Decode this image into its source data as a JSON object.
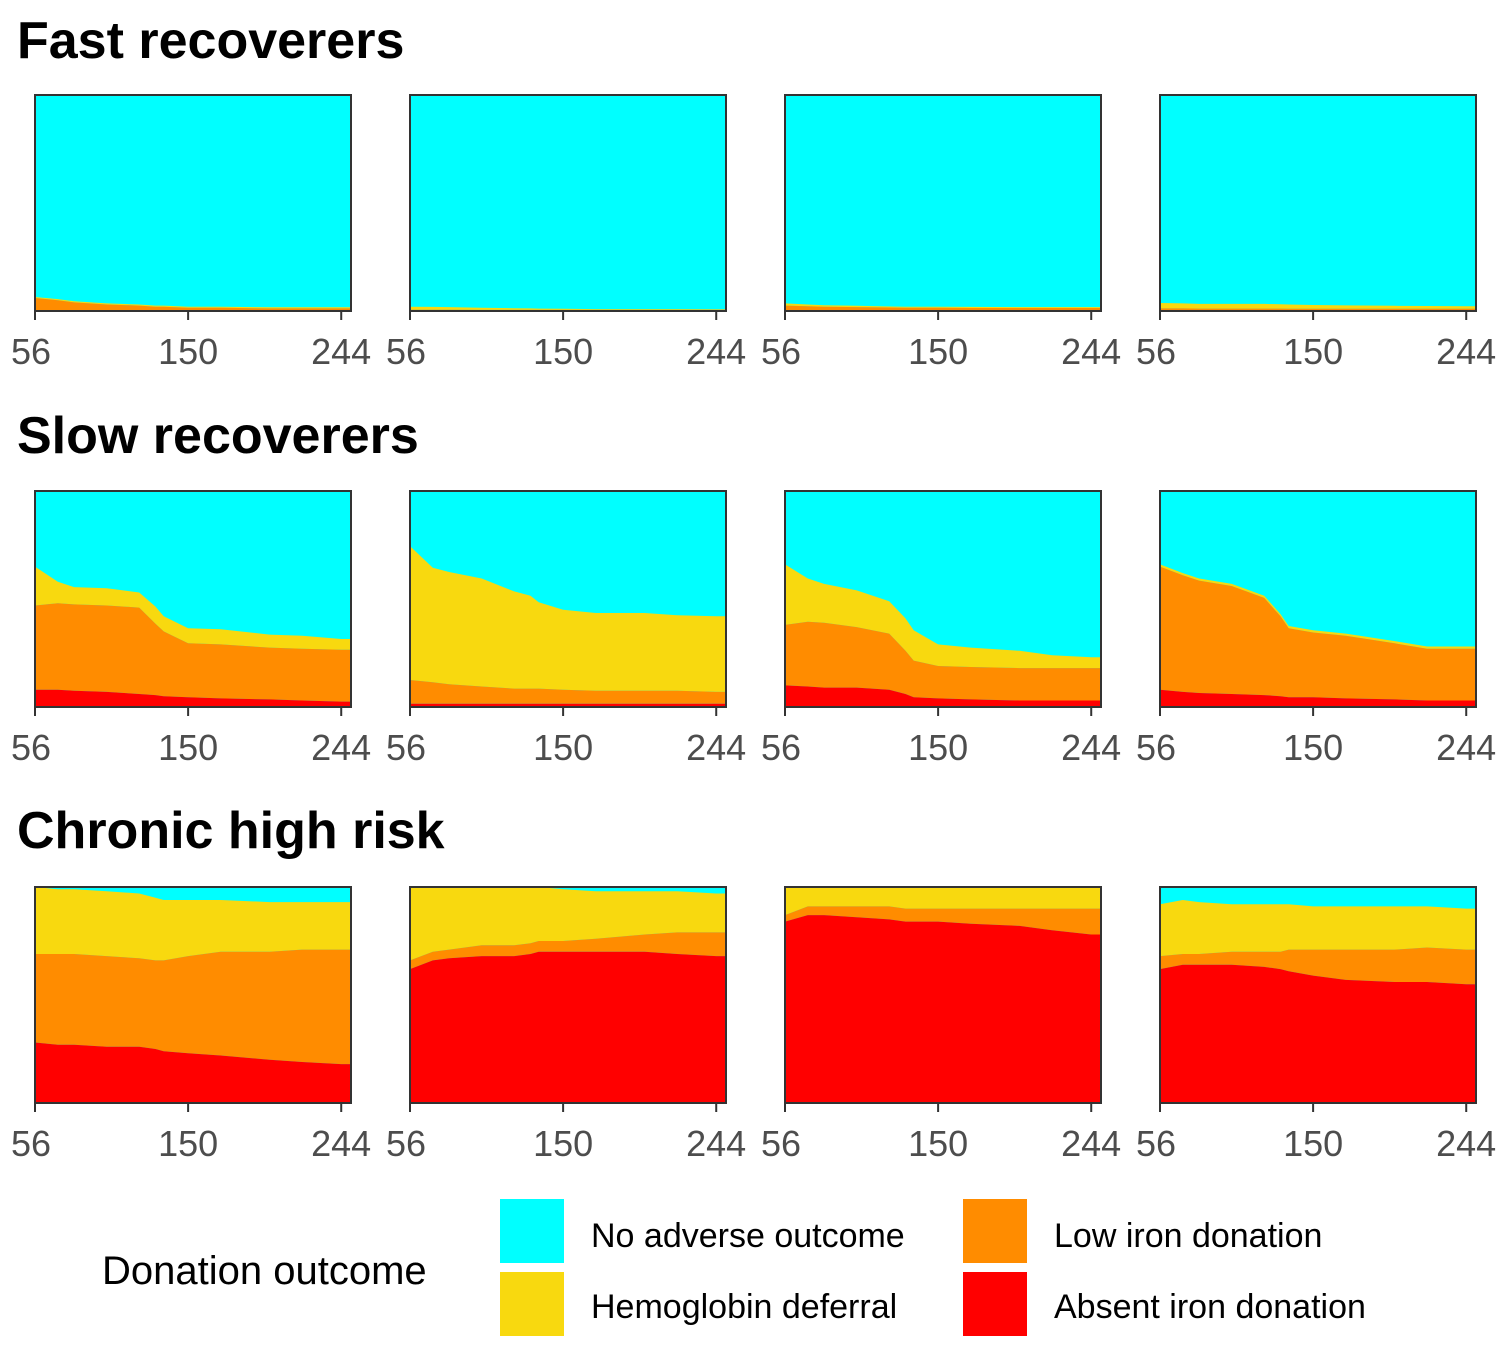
{
  "chart_data": {
    "type": "area",
    "x_ticks": [
      56,
      150,
      244
    ],
    "xlim": [
      56,
      250
    ],
    "ylim": [
      0,
      1
    ],
    "stacking": "percent",
    "grid": false,
    "legend": {
      "title": "Donation outcome",
      "placement": "bottom",
      "entries": [
        {
          "key": "none",
          "label": "No adverse outcome",
          "color": "#00FFFF"
        },
        {
          "key": "hb",
          "label": "Hemoglobin deferral",
          "color": "#F8D90F"
        },
        {
          "key": "low",
          "label": "Low iron donation",
          "color": "#FF8C00"
        },
        {
          "key": "absent",
          "label": "Absent iron donation",
          "color": "#FF0000"
        }
      ]
    },
    "x": [
      56,
      70,
      80,
      100,
      120,
      130,
      135,
      150,
      170,
      200,
      220,
      244,
      250
    ],
    "rows": [
      {
        "title": "Fast recoverers",
        "panels": [
          {
            "absent": [
              0,
              0,
              0,
              0,
              0,
              0,
              0,
              0,
              0,
              0,
              0,
              0,
              0
            ],
            "low": [
              0.06,
              0.05,
              0.04,
              0.03,
              0.025,
              0.02,
              0.02,
              0.015,
              0.015,
              0.012,
              0.012,
              0.012,
              0.012
            ],
            "hb": [
              0.005,
              0.005,
              0.005,
              0.005,
              0.005,
              0.005,
              0.005,
              0.005,
              0.005,
              0.005,
              0.005,
              0.005,
              0.005
            ]
          },
          {
            "absent": [
              0,
              0,
              0,
              0,
              0,
              0,
              0,
              0,
              0,
              0,
              0,
              0,
              0
            ],
            "low": [
              0.006,
              0.006,
              0.006,
              0.005,
              0.005,
              0.005,
              0.005,
              0.005,
              0.005,
              0.005,
              0.005,
              0.005,
              0.005
            ],
            "hb": [
              0.014,
              0.013,
              0.012,
              0.01,
              0.008,
              0.007,
              0.006,
              0.005,
              0.004,
              0.004,
              0.004,
              0.003,
              0.003
            ]
          },
          {
            "absent": [
              0,
              0,
              0,
              0,
              0,
              0,
              0,
              0,
              0,
              0,
              0,
              0,
              0
            ],
            "low": [
              0.025,
              0.022,
              0.02,
              0.018,
              0.016,
              0.015,
              0.015,
              0.015,
              0.014,
              0.014,
              0.014,
              0.014,
              0.014
            ],
            "hb": [
              0.01,
              0.008,
              0.007,
              0.006,
              0.005,
              0.005,
              0.005,
              0.005,
              0.005,
              0.004,
              0.004,
              0.004,
              0.004
            ]
          },
          {
            "absent": [
              0,
              0,
              0,
              0,
              0,
              0,
              0,
              0,
              0,
              0,
              0,
              0,
              0
            ],
            "low": [
              0.012,
              0.012,
              0.011,
              0.011,
              0.011,
              0.011,
              0.01,
              0.01,
              0.01,
              0.01,
              0.01,
              0.01,
              0.01
            ],
            "hb": [
              0.025,
              0.023,
              0.022,
              0.022,
              0.022,
              0.02,
              0.02,
              0.018,
              0.016,
              0.014,
              0.013,
              0.012,
              0.012
            ]
          }
        ]
      },
      {
        "title": "Slow recoverers",
        "panels": [
          {
            "absent": [
              0.08,
              0.08,
              0.075,
              0.07,
              0.06,
              0.055,
              0.05,
              0.045,
              0.04,
              0.035,
              0.03,
              0.025,
              0.025
            ],
            "low": [
              0.39,
              0.4,
              0.4,
              0.4,
              0.4,
              0.33,
              0.3,
              0.25,
              0.25,
              0.24,
              0.24,
              0.24,
              0.24
            ],
            "hb": [
              0.18,
              0.1,
              0.08,
              0.08,
              0.07,
              0.08,
              0.07,
              0.07,
              0.07,
              0.06,
              0.06,
              0.05,
              0.05
            ]
          },
          {
            "absent": [
              0.015,
              0.015,
              0.015,
              0.015,
              0.015,
              0.015,
              0.015,
              0.015,
              0.015,
              0.015,
              0.015,
              0.015,
              0.015
            ],
            "low": [
              0.11,
              0.1,
              0.09,
              0.08,
              0.07,
              0.07,
              0.07,
              0.065,
              0.06,
              0.06,
              0.06,
              0.055,
              0.055
            ],
            "hb": [
              0.62,
              0.53,
              0.52,
              0.5,
              0.45,
              0.43,
              0.4,
              0.37,
              0.36,
              0.36,
              0.35,
              0.35,
              0.35
            ]
          },
          {
            "absent": [
              0.1,
              0.095,
              0.09,
              0.09,
              0.08,
              0.06,
              0.045,
              0.04,
              0.035,
              0.03,
              0.03,
              0.03,
              0.03
            ],
            "low": [
              0.28,
              0.3,
              0.3,
              0.28,
              0.26,
              0.2,
              0.17,
              0.15,
              0.15,
              0.15,
              0.15,
              0.15,
              0.15
            ],
            "hb": [
              0.28,
              0.2,
              0.18,
              0.17,
              0.15,
              0.15,
              0.14,
              0.1,
              0.09,
              0.08,
              0.06,
              0.05,
              0.05
            ]
          },
          {
            "absent": [
              0.08,
              0.07,
              0.065,
              0.06,
              0.055,
              0.05,
              0.045,
              0.045,
              0.04,
              0.035,
              0.03,
              0.03,
              0.03
            ],
            "low": [
              0.57,
              0.54,
              0.52,
              0.5,
              0.45,
              0.37,
              0.32,
              0.3,
              0.29,
              0.26,
              0.24,
              0.24,
              0.24
            ],
            "hb": [
              0.01,
              0.01,
              0.01,
              0.01,
              0.01,
              0.01,
              0.01,
              0.01,
              0.01,
              0.01,
              0.01,
              0.01,
              0.01
            ]
          }
        ]
      },
      {
        "title": "Chronic high risk",
        "panels": [
          {
            "absent": [
              0.28,
              0.27,
              0.27,
              0.26,
              0.26,
              0.25,
              0.24,
              0.23,
              0.22,
              0.2,
              0.19,
              0.18,
              0.18
            ],
            "low": [
              0.41,
              0.42,
              0.42,
              0.42,
              0.41,
              0.41,
              0.42,
              0.45,
              0.48,
              0.5,
              0.52,
              0.53,
              0.53
            ],
            "hb": [
              0.31,
              0.3,
              0.3,
              0.3,
              0.3,
              0.29,
              0.28,
              0.26,
              0.24,
              0.23,
              0.22,
              0.22,
              0.22
            ]
          },
          {
            "absent": [
              0.62,
              0.66,
              0.67,
              0.68,
              0.68,
              0.69,
              0.7,
              0.7,
              0.7,
              0.7,
              0.69,
              0.68,
              0.68
            ],
            "low": [
              0.04,
              0.04,
              0.04,
              0.05,
              0.05,
              0.05,
              0.05,
              0.05,
              0.06,
              0.08,
              0.1,
              0.11,
              0.11
            ],
            "hb": [
              0.34,
              0.3,
              0.29,
              0.27,
              0.27,
              0.26,
              0.25,
              0.24,
              0.22,
              0.2,
              0.19,
              0.18,
              0.18
            ]
          },
          {
            "absent": [
              0.84,
              0.87,
              0.87,
              0.86,
              0.85,
              0.84,
              0.84,
              0.84,
              0.83,
              0.82,
              0.8,
              0.78,
              0.78
            ],
            "low": [
              0.03,
              0.04,
              0.04,
              0.05,
              0.06,
              0.06,
              0.06,
              0.06,
              0.07,
              0.08,
              0.1,
              0.12,
              0.12
            ],
            "hb": [
              0.13,
              0.09,
              0.09,
              0.09,
              0.09,
              0.1,
              0.1,
              0.1,
              0.1,
              0.1,
              0.1,
              0.1,
              0.1
            ]
          },
          {
            "absent": [
              0.62,
              0.64,
              0.64,
              0.64,
              0.63,
              0.62,
              0.61,
              0.59,
              0.57,
              0.56,
              0.56,
              0.55,
              0.55
            ],
            "low": [
              0.06,
              0.05,
              0.05,
              0.06,
              0.07,
              0.08,
              0.1,
              0.12,
              0.14,
              0.15,
              0.16,
              0.16,
              0.16
            ],
            "hb": [
              0.24,
              0.25,
              0.24,
              0.22,
              0.22,
              0.22,
              0.21,
              0.2,
              0.2,
              0.2,
              0.19,
              0.19,
              0.19
            ]
          }
        ]
      }
    ]
  }
}
